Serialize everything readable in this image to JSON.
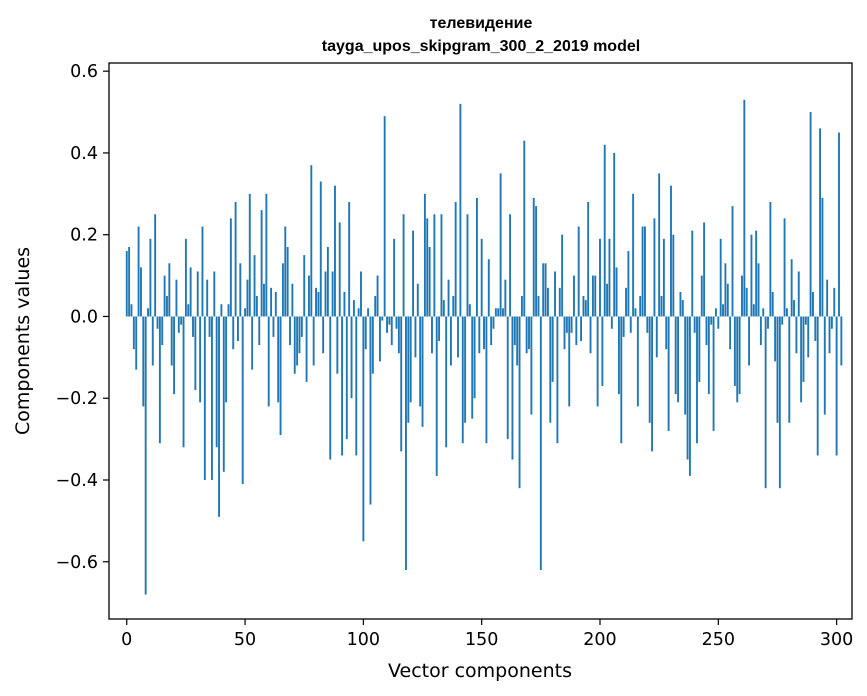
{
  "chart_data": {
    "type": "bar",
    "title": "телевидение",
    "subtitle": "tayga_upos_skipgram_300_2_2019 model",
    "xlabel": "Vector components",
    "ylabel": "Components values",
    "xlim": [
      -7.5,
      306.5
    ],
    "ylim": [
      -0.74,
      0.62
    ],
    "xticks": [
      0,
      50,
      100,
      150,
      200,
      250,
      300
    ],
    "xtick_labels": [
      "0",
      "50",
      "100",
      "150",
      "200",
      "250",
      "300"
    ],
    "yticks": [
      -0.6,
      -0.4,
      -0.2,
      0.0,
      0.2,
      0.4,
      0.6
    ],
    "ytick_labels": [
      "−0.6",
      "−0.4",
      "−0.2",
      "0.0",
      "0.2",
      "0.4",
      "0.6"
    ],
    "color": "#1f77b4",
    "values": [
      0.16,
      0.17,
      0.03,
      -0.08,
      -0.13,
      0.22,
      0.12,
      -0.22,
      -0.68,
      0.02,
      0.19,
      -0.12,
      0.25,
      -0.03,
      -0.31,
      -0.07,
      0.1,
      0.05,
      0.13,
      -0.12,
      -0.19,
      0.09,
      -0.04,
      -0.02,
      -0.32,
      0.19,
      0.03,
      0.12,
      -0.05,
      -0.18,
      0.11,
      -0.21,
      0.22,
      -0.4,
      0.09,
      -0.05,
      -0.4,
      0.11,
      -0.32,
      -0.49,
      0.03,
      -0.38,
      -0.21,
      0.03,
      0.24,
      -0.08,
      0.28,
      -0.06,
      0.13,
      -0.41,
      0.02,
      0.09,
      0.3,
      -0.13,
      0.15,
      0.05,
      -0.07,
      0.26,
      0.08,
      0.3,
      -0.22,
      0.07,
      -0.05,
      0.06,
      -0.21,
      -0.29,
      0.13,
      0.22,
      0.17,
      -0.07,
      0.08,
      -0.14,
      -0.12,
      -0.09,
      -0.05,
      0.15,
      -0.16,
      0.1,
      0.37,
      -0.12,
      0.07,
      0.06,
      0.33,
      -0.09,
      0.11,
      0.17,
      -0.35,
      0.11,
      0.32,
      -0.14,
      0.23,
      -0.34,
      0.06,
      -0.3,
      0.28,
      -0.2,
      0.04,
      -0.34,
      0.02,
      0.11,
      -0.55,
      -0.08,
      0.02,
      -0.46,
      -0.14,
      0.05,
      0.1,
      -0.11,
      -0.01,
      0.49,
      -0.04,
      -0.02,
      -0.07,
      0.19,
      -0.03,
      -0.09,
      -0.33,
      0.25,
      -0.62,
      -0.26,
      -0.21,
      0.21,
      -0.1,
      0.08,
      -0.22,
      -0.27,
      0.3,
      0.24,
      0.17,
      -0.09,
      0.25,
      -0.39,
      -0.06,
      0.25,
      0.04,
      -0.32,
      0.09,
      -0.12,
      0.05,
      0.28,
      -0.1,
      0.52,
      -0.31,
      -0.26,
      0.25,
      0.03,
      -0.25,
      -0.2,
      0.29,
      -0.09,
      0.19,
      -0.08,
      -0.31,
      0.14,
      -0.07,
      -0.03,
      0.02,
      0.02,
      0.35,
      0.02,
      0.09,
      -0.3,
      0.25,
      -0.35,
      -0.07,
      -0.12,
      -0.42,
      0.05,
      0.43,
      -0.09,
      -0.08,
      -0.24,
      0.29,
      0.27,
      0.05,
      -0.62,
      0.13,
      0.13,
      0.07,
      -0.26,
      -0.16,
      0.11,
      -0.31,
      0.07,
      0.2,
      -0.08,
      -0.04,
      -0.22,
      -0.04,
      0.1,
      -0.07,
      0.22,
      -0.06,
      0.05,
      0.04,
      0.28,
      -0.09,
      0.1,
      0.1,
      -0.22,
      0.19,
      -0.17,
      0.42,
      0.08,
      0.19,
      -0.03,
      0.4,
      0.12,
      -0.19,
      -0.31,
      -0.05,
      0.07,
      0.16,
      -0.04,
      0.3,
      0.02,
      -0.22,
      0.05,
      0.22,
      0.22,
      -0.04,
      -0.26,
      -0.33,
      0.24,
      -0.1,
      0.35,
      0.05,
      0.19,
      -0.08,
      -0.28,
      0.32,
      0.2,
      -0.19,
      -0.21,
      0.06,
      0.04,
      -0.24,
      -0.35,
      -0.39,
      0.21,
      -0.04,
      -0.31,
      -0.16,
      0.1,
      0.23,
      -0.07,
      -0.19,
      -0.02,
      -0.28,
      0.02,
      -0.03,
      0.19,
      0.03,
      0.13,
      0.08,
      -0.08,
      0.27,
      -0.17,
      -0.21,
      -0.19,
      0.1,
      0.53,
      0.07,
      -0.12,
      0.2,
      0.03,
      0.21,
      0.13,
      -0.07,
      0.02,
      -0.42,
      -0.03,
      0.28,
      0.06,
      -0.11,
      -0.26,
      -0.42,
      -0.02,
      0.24,
      0.02,
      -0.26,
      0.14,
      0.04,
      -0.09,
      0.11,
      -0.21,
      -0.16,
      -0.02,
      -0.1,
      0.5,
      0.06,
      -0.06,
      -0.34,
      0.46,
      0.29,
      -0.24,
      0.09,
      -0.09,
      -0.03,
      0.07,
      -0.34,
      0.45,
      -0.12
    ]
  }
}
